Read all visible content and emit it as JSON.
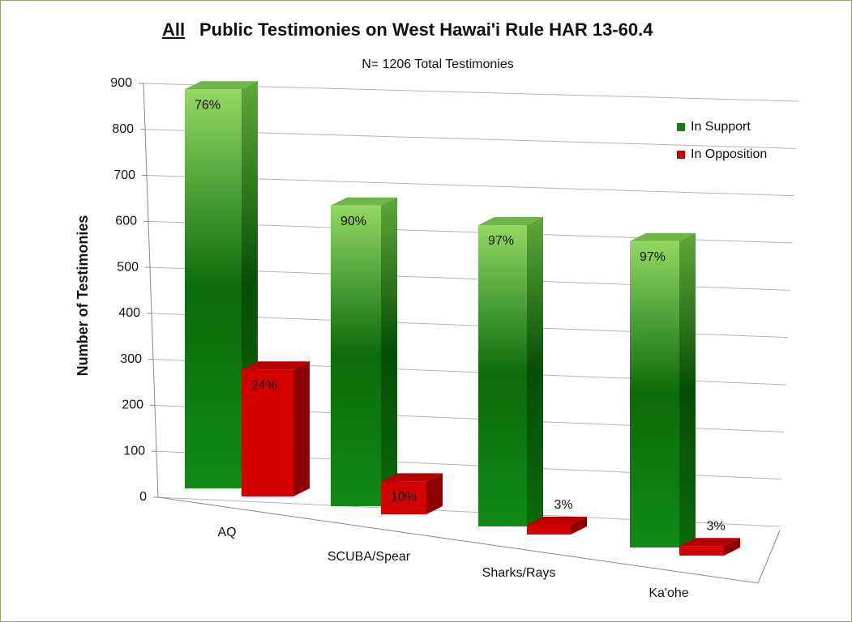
{
  "chart_data": {
    "type": "bar3d",
    "title_underlined": "All",
    "title": "Public Testimonies on West Hawai'i Rule HAR 13-60.4",
    "subtitle": "N= 1206 Total Testimonies",
    "y_label": "Number of Testimonies",
    "categories": [
      "AQ",
      "SCUBA/Spear",
      "Sharks/Rays",
      "Ka'ohe"
    ],
    "series": [
      {
        "name": "In Support",
        "color": "#1a8a1a",
        "values": [
          880,
          640,
          620,
          610
        ],
        "labels": [
          "76%",
          "90%",
          "97%",
          "97%"
        ]
      },
      {
        "name": "In Opposition",
        "color": "#d40000",
        "values": [
          280,
          70,
          20,
          19
        ],
        "labels": [
          "24%",
          "10%",
          "3%",
          "3%"
        ]
      }
    ],
    "ylim": [
      0,
      900
    ],
    "yticks": [
      0,
      100,
      200,
      300,
      400,
      500,
      600,
      700,
      800,
      900
    ],
    "grid": true,
    "legend": "upper right"
  }
}
